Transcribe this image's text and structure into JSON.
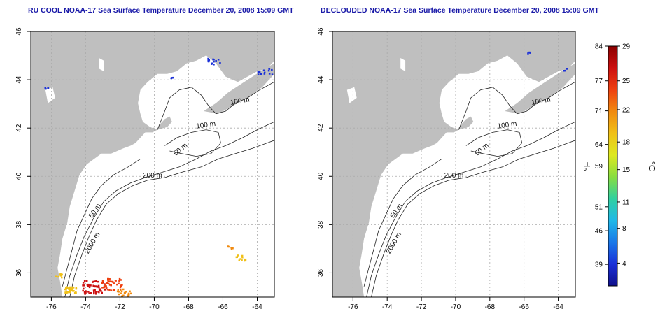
{
  "panels": [
    {
      "id": "left",
      "title": "RU COOL NOAA-17 Sea Surface Temperature December 20, 2008 15:09 GMT",
      "contour_labels": [
        "100 m",
        "100 m",
        "50 m",
        "200 m",
        "50 m",
        "2000 m"
      ],
      "has_clouds_removed": false
    },
    {
      "id": "right",
      "title": "DECLOUDED NOAA-17 Sea Surface Temperature December 20, 2008 15:09 GMT",
      "contour_labels": [
        "100 m",
        "100 m",
        "50 m",
        "200 m",
        "50 m",
        "2000 m"
      ],
      "has_clouds_removed": true
    }
  ],
  "axes": {
    "x_ticks": [
      "-76",
      "-74",
      "-72",
      "-70",
      "-68",
      "-66",
      "-64"
    ],
    "y_ticks": [
      "36",
      "38",
      "40",
      "42",
      "44",
      "46"
    ],
    "x_range": [
      -77.2,
      -63
    ],
    "y_range": [
      35,
      46
    ]
  },
  "colorbar": {
    "fahrenheit_ticks": [
      "84",
      "77",
      "71",
      "64",
      "59",
      "51",
      "46",
      "39"
    ],
    "celsius_ticks": [
      "29",
      "25",
      "22",
      "18",
      "15",
      "11",
      "8",
      "4"
    ],
    "fahrenheit_label": "°F",
    "celsius_label": "°C",
    "colors": [
      "#8b0000",
      "#cc1010",
      "#ee4010",
      "#f08a10",
      "#f0c018",
      "#dde820",
      "#88dd40",
      "#30d0a0",
      "#20b8e8",
      "#1a78e8",
      "#1a30d8",
      "#10108a"
    ]
  },
  "colors": {
    "land": "#bfbfbf",
    "water": "#ffffff",
    "title": "#1a1aa8",
    "grid": "#aaaaaa"
  }
}
